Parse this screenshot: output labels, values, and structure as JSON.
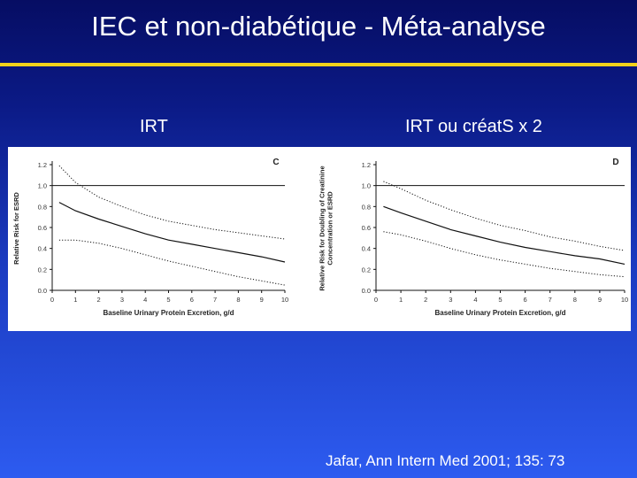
{
  "slide": {
    "title": "IEC et non-diabétique - Méta-analyse",
    "left_caption": "IRT",
    "right_caption": "IRT ou créatS x 2",
    "citation": "Jafar, Ann Intern Med 2001; 135: 73",
    "colors": {
      "accent_rule": "#f2d21a",
      "text": "#ffffff",
      "plot_ink": "#111111"
    }
  },
  "chart_data": [
    {
      "type": "line",
      "panel_label": "C",
      "xlabel": "Baseline Urinary Protein Excretion, g/d",
      "ylabel": "Relative Risk for ESRD",
      "xlim": [
        0,
        10
      ],
      "ylim": [
        0,
        1.2
      ],
      "x_ticks": [
        0,
        1,
        2,
        3,
        4,
        5,
        6,
        7,
        8,
        9,
        10
      ],
      "x_tick_labels": [
        "0",
        "1",
        "2",
        "3",
        "4",
        "5",
        "6",
        "7",
        "8",
        "9",
        "10"
      ],
      "y_ticks": [
        0,
        0.2,
        0.4,
        0.6,
        0.8,
        1.0,
        1.2
      ],
      "y_tick_labels": [
        "0.0",
        "0.2",
        "0.4",
        "0.6",
        "0.8",
        "1.0",
        "1.2"
      ],
      "reference_line": 1.0,
      "series": [
        {
          "role": "estimate",
          "style": "solid",
          "x": [
            0.3,
            1,
            2,
            3,
            4,
            5,
            6,
            7,
            8,
            9,
            10
          ],
          "y": [
            0.84,
            0.76,
            0.68,
            0.61,
            0.54,
            0.48,
            0.44,
            0.4,
            0.36,
            0.32,
            0.27
          ]
        },
        {
          "role": "upper_ci",
          "style": "dotted",
          "x": [
            0.3,
            1,
            2,
            3,
            4,
            5,
            6,
            7,
            8,
            9,
            10
          ],
          "y": [
            1.19,
            1.03,
            0.89,
            0.8,
            0.72,
            0.66,
            0.62,
            0.58,
            0.55,
            0.52,
            0.49
          ]
        },
        {
          "role": "lower_ci",
          "style": "dotted",
          "x": [
            0.3,
            1,
            2,
            3,
            4,
            5,
            6,
            7,
            8,
            9,
            10
          ],
          "y": [
            0.48,
            0.48,
            0.45,
            0.4,
            0.34,
            0.28,
            0.23,
            0.18,
            0.13,
            0.09,
            0.05
          ]
        }
      ]
    },
    {
      "type": "line",
      "panel_label": "D",
      "xlabel": "Baseline Urinary Protein Excretion, g/d",
      "ylabel_lines": [
        "Relative Risk for Doubling of Creatinine",
        "Concentration or ESRD"
      ],
      "xlim": [
        0,
        10
      ],
      "ylim": [
        0,
        1.2
      ],
      "x_ticks": [
        0,
        1,
        2,
        3,
        4,
        5,
        6,
        7,
        8,
        9,
        10
      ],
      "x_tick_labels": [
        "0",
        "1",
        "2",
        "3",
        "4",
        "5",
        "6",
        "7",
        "8",
        "9",
        "10"
      ],
      "y_ticks": [
        0,
        0.2,
        0.4,
        0.6,
        0.8,
        1.0,
        1.2
      ],
      "y_tick_labels": [
        "0.0",
        "0.2",
        "0.4",
        "0.6",
        "0.8",
        "1.0",
        "1.2"
      ],
      "reference_line": 1.0,
      "series": [
        {
          "role": "estimate",
          "style": "solid",
          "x": [
            0.3,
            1,
            2,
            3,
            4,
            5,
            6,
            7,
            8,
            9,
            10
          ],
          "y": [
            0.8,
            0.74,
            0.66,
            0.58,
            0.52,
            0.46,
            0.41,
            0.37,
            0.33,
            0.3,
            0.25
          ]
        },
        {
          "role": "upper_ci",
          "style": "dotted",
          "x": [
            0.3,
            1,
            2,
            3,
            4,
            5,
            6,
            7,
            8,
            9,
            10
          ],
          "y": [
            1.04,
            0.97,
            0.86,
            0.77,
            0.69,
            0.62,
            0.57,
            0.51,
            0.47,
            0.42,
            0.38
          ]
        },
        {
          "role": "lower_ci",
          "style": "dotted",
          "x": [
            0.3,
            1,
            2,
            3,
            4,
            5,
            6,
            7,
            8,
            9,
            10
          ],
          "y": [
            0.56,
            0.53,
            0.47,
            0.4,
            0.34,
            0.29,
            0.25,
            0.21,
            0.18,
            0.15,
            0.13
          ]
        }
      ]
    }
  ]
}
